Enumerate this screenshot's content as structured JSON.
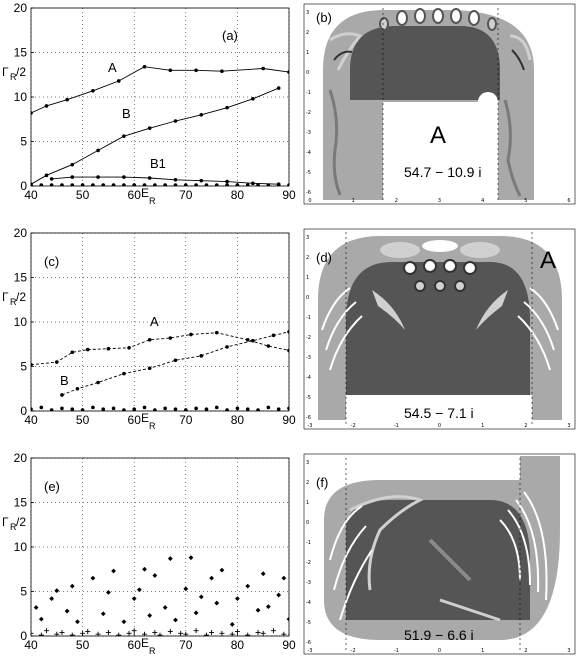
{
  "figure": {
    "panel_a_label": "(a)",
    "panel_b_label": "(b)",
    "panel_c_label": "(c)",
    "panel_d_label": "(d)",
    "panel_e_label": "(e)",
    "panel_f_label": "(f)",
    "ylabel_main": "Γ",
    "ylabel_sub": "R",
    "ylabel_tail": "/2",
    "xlabel_main": "E",
    "xlabel_sub": "R",
    "map_b_marker": "A",
    "map_b_value": "54.7 − 10.9 i",
    "map_d_marker": "A",
    "map_d_value": "54.5 − 7.1 i",
    "map_f_value": "51.9 − 6.6 i",
    "map_b_xticks": [
      "0",
      "1",
      "2",
      "3",
      "4",
      "5",
      "6"
    ],
    "map_b_yticks": [
      "3",
      "2",
      "1",
      "0",
      "-1",
      "-2",
      "-3",
      "-4",
      "-5",
      "-6"
    ],
    "map_df_xticks": [
      "-3",
      "-2",
      "-1",
      "0",
      "1",
      "2",
      "3"
    ],
    "map_df_yticks": [
      "3",
      "2",
      "1",
      "0",
      "-1",
      "-2",
      "-3",
      "-4",
      "-5",
      "-6"
    ]
  },
  "colors": {
    "wall_gray": "#a9a9a9",
    "region_dark": "#555555",
    "region_mid": "#8a8a8a",
    "region_light": "#d0d0d0"
  },
  "chart_data": [
    {
      "panel": "(a)",
      "type": "line",
      "xlim": [
        40,
        90
      ],
      "ylim": [
        0,
        20
      ],
      "xticks": [
        40,
        50,
        60,
        70,
        80,
        90
      ],
      "yticks": [
        0,
        5,
        10,
        15,
        20
      ],
      "grid": true,
      "series": [
        {
          "name": "A",
          "x": [
            40,
            43,
            47,
            52,
            57,
            62,
            67,
            72,
            77,
            85,
            90
          ],
          "y": [
            8.2,
            9.0,
            9.7,
            10.7,
            11.8,
            13.4,
            13.0,
            13.0,
            12.9,
            13.2,
            12.8
          ]
        },
        {
          "name": "B",
          "x": [
            40,
            43,
            48,
            53,
            58,
            63,
            68,
            73,
            78,
            83,
            88
          ],
          "y": [
            0.2,
            1.2,
            2.4,
            4.0,
            5.6,
            6.5,
            7.3,
            8.0,
            8.8,
            9.8,
            11.0
          ]
        },
        {
          "name": "B1",
          "x": [
            44,
            48,
            53,
            58,
            63,
            68,
            73,
            78,
            83,
            88
          ],
          "y": [
            0.8,
            1.0,
            1.0,
            1.0,
            0.9,
            0.7,
            0.6,
            0.5,
            0.3,
            0.2
          ]
        },
        {
          "name": "",
          "x": [
            40,
            42,
            44,
            46,
            48,
            50,
            52,
            54,
            56,
            58,
            60,
            62,
            64,
            66,
            68,
            70,
            72,
            74,
            76,
            78,
            80,
            82,
            84,
            86,
            88,
            90
          ],
          "y": [
            0.1,
            0.1,
            0.1,
            0.1,
            0.1,
            0.1,
            0.1,
            0.1,
            0.1,
            0.1,
            0.1,
            0.1,
            0.1,
            0.1,
            0.1,
            0.1,
            0.1,
            0.1,
            0.1,
            0.1,
            0.1,
            0.1,
            0.1,
            0.1,
            0.1,
            0.1
          ]
        }
      ],
      "annotations": [
        "A",
        "B",
        "B1"
      ]
    },
    {
      "panel": "(c)",
      "type": "line",
      "xlim": [
        40,
        90
      ],
      "ylim": [
        0,
        20
      ],
      "xticks": [
        40,
        50,
        60,
        70,
        80,
        90
      ],
      "yticks": [
        0,
        5,
        10,
        15,
        20
      ],
      "grid": true,
      "series": [
        {
          "name": "A",
          "x": [
            40,
            45,
            48,
            51,
            55,
            59,
            63,
            67,
            71,
            76,
            82,
            86,
            90
          ],
          "y": [
            5.2,
            5.5,
            6.6,
            6.9,
            7.0,
            7.1,
            8.0,
            8.2,
            8.6,
            8.8,
            8.0,
            7.3,
            6.8
          ]
        },
        {
          "name": "B",
          "x": [
            46,
            49,
            53,
            58,
            63,
            68,
            73,
            78,
            83,
            87,
            90
          ],
          "y": [
            1.8,
            2.5,
            3.2,
            4.2,
            4.8,
            5.7,
            6.2,
            7.2,
            7.9,
            8.5,
            8.9
          ]
        },
        {
          "name": "",
          "x": [
            40,
            42,
            44,
            46,
            48,
            50,
            52,
            54,
            56,
            58,
            60,
            62,
            64,
            66,
            68,
            70,
            72,
            74,
            76,
            78,
            80,
            82,
            84,
            86,
            88,
            90
          ],
          "y": [
            0.2,
            0.4,
            0.1,
            0.3,
            0.2,
            0.1,
            0.4,
            0.2,
            0.3,
            0.1,
            0.2,
            0.4,
            0.1,
            0.3,
            0.2,
            0.1,
            0.3,
            0.2,
            0.4,
            0.1,
            0.3,
            0.2,
            0.1,
            0.4,
            0.2,
            0.3
          ]
        }
      ],
      "annotations": [
        "A",
        "B"
      ]
    },
    {
      "panel": "(e)",
      "type": "scatter",
      "xlim": [
        40,
        90
      ],
      "ylim": [
        0,
        20
      ],
      "xticks": [
        40,
        50,
        60,
        70,
        80,
        90
      ],
      "yticks": [
        0,
        5,
        10,
        15,
        20
      ],
      "grid": true,
      "series": [
        {
          "name": "",
          "x": [
            41,
            42,
            44,
            45,
            47,
            48,
            49,
            52,
            54,
            55,
            56,
            58,
            60,
            61,
            62,
            63,
            64,
            66,
            67,
            68,
            70,
            71,
            72,
            73,
            75,
            76,
            77,
            79,
            80,
            82,
            84,
            85,
            86,
            88,
            89,
            90
          ],
          "y": [
            3.2,
            1.9,
            4.2,
            5.1,
            2.8,
            5.6,
            1.6,
            6.5,
            2.5,
            4.9,
            7.3,
            1.6,
            4.2,
            5.2,
            7.5,
            2.3,
            6.8,
            3.2,
            8.7,
            1.8,
            5.3,
            8.8,
            2.6,
            4.4,
            6.5,
            3.7,
            7.4,
            1.3,
            4.2,
            5.6,
            2.9,
            7.0,
            3.3,
            4.6,
            6.5,
            1.9
          ]
        },
        {
          "name": "",
          "x": [
            40,
            42,
            43,
            45,
            46,
            48,
            50,
            51,
            53,
            55,
            57,
            59,
            60,
            62,
            64,
            65,
            67,
            69,
            70,
            72,
            74,
            75,
            77,
            79,
            80,
            82,
            84,
            85,
            87,
            89
          ],
          "y": [
            0.3,
            0.1,
            0.6,
            0.2,
            0.4,
            0.1,
            0.3,
            0.5,
            0.2,
            0.4,
            0.1,
            0.3,
            0.6,
            0.2,
            0.4,
            0.1,
            0.5,
            0.3,
            0.2,
            0.6,
            0.1,
            0.4,
            0.3,
            0.2,
            0.5,
            0.1,
            0.4,
            0.3,
            0.6,
            0.2
          ]
        }
      ]
    }
  ]
}
